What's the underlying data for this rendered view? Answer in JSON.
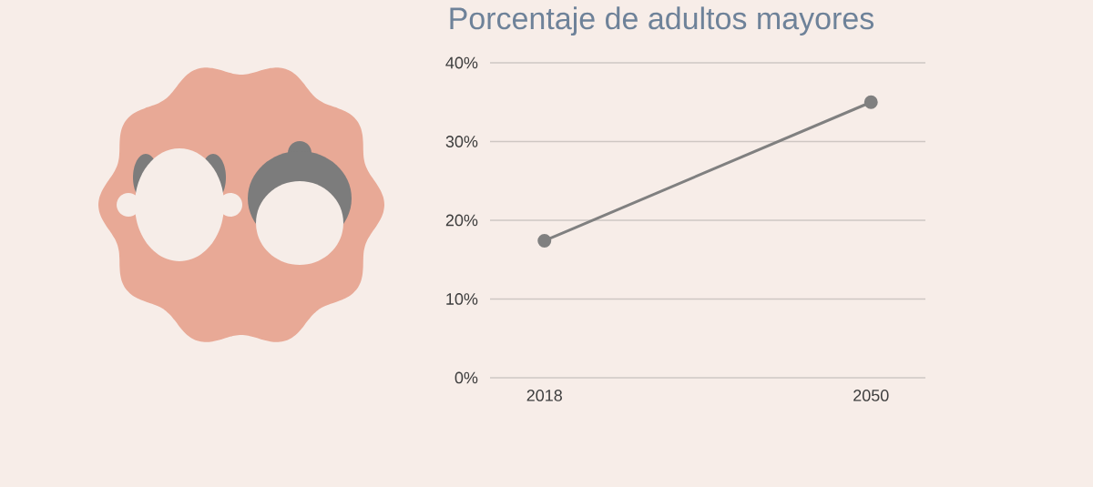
{
  "chart_data": {
    "type": "line",
    "title": "Porcentaje de adultos mayores",
    "categories": [
      "2018",
      "2050"
    ],
    "series": [
      {
        "color": "#808080",
        "values": [
          17.4,
          35
        ]
      }
    ],
    "ylim": [
      0,
      40
    ],
    "yticks": [
      {
        "value": 0,
        "label": "0%"
      },
      {
        "value": 10,
        "label": "10%"
      },
      {
        "value": 20,
        "label": "20%"
      },
      {
        "value": 30,
        "label": "30%"
      },
      {
        "value": 40,
        "label": "40%"
      }
    ],
    "grid": "y",
    "marker": "circle",
    "line_style": "solid"
  }
}
